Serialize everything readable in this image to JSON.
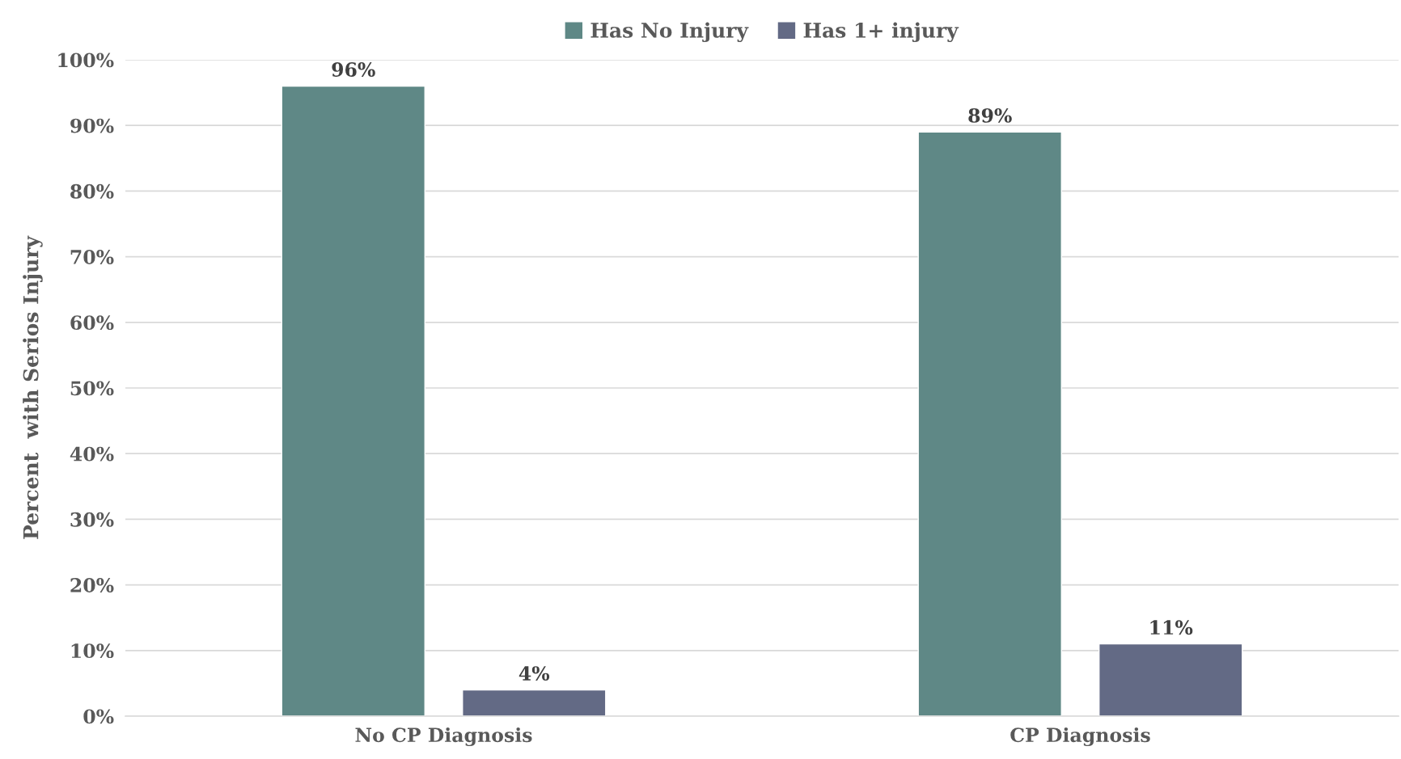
{
  "chart_data": {
    "type": "bar",
    "ylabel": "Percent  with Serios Injury",
    "categories": [
      "No CP Diagnosis",
      "CP Diagnosis"
    ],
    "series": [
      {
        "name": "Has No Injury",
        "color": "#5f8886",
        "values": [
          96,
          89
        ],
        "value_labels": [
          "96%",
          "89%"
        ]
      },
      {
        "name": "Has 1+ injury",
        "color": "#636a85",
        "values": [
          4,
          11
        ],
        "value_labels": [
          "4%",
          "11%"
        ]
      }
    ],
    "ylim": [
      0,
      100
    ],
    "yticks": [
      {
        "value": 0,
        "label": "0%"
      },
      {
        "value": 10,
        "label": "10%"
      },
      {
        "value": 20,
        "label": "20%"
      },
      {
        "value": 30,
        "label": "30%"
      },
      {
        "value": 40,
        "label": "40%"
      },
      {
        "value": 50,
        "label": "50%"
      },
      {
        "value": 60,
        "label": "60%"
      },
      {
        "value": 70,
        "label": "70%"
      },
      {
        "value": 80,
        "label": "80%"
      },
      {
        "value": 90,
        "label": "90%"
      },
      {
        "value": 100,
        "label": "100%"
      }
    ],
    "grid": "y",
    "legend": "top"
  }
}
